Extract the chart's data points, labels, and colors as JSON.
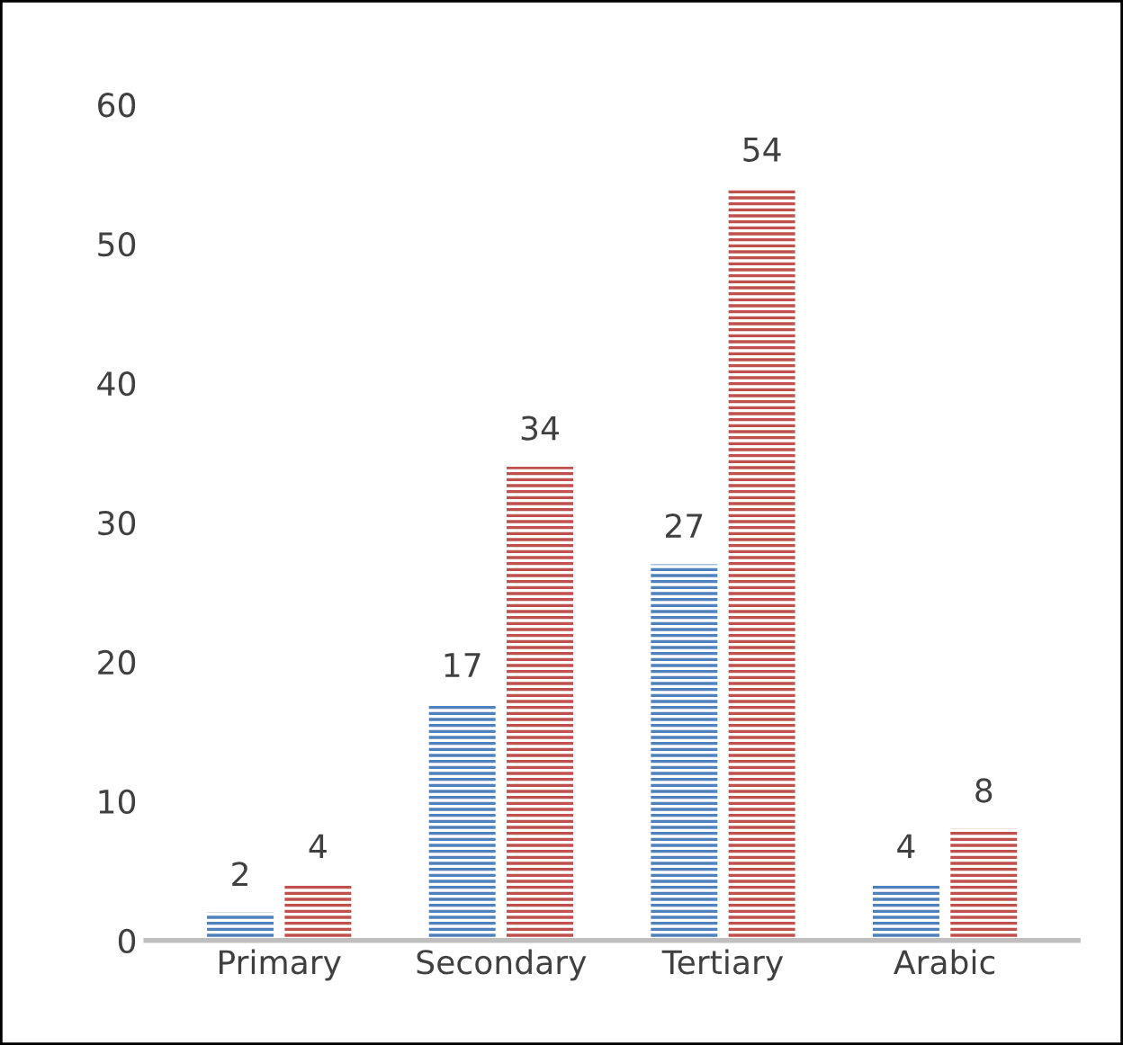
{
  "chart_data": {
    "type": "bar",
    "categories": [
      "Primary",
      "Secondary",
      "Tertiary",
      "Arabic"
    ],
    "series": [
      {
        "color": "#4f81bd",
        "values": [
          2,
          17,
          27,
          4
        ]
      },
      {
        "color": "#c0504d",
        "values": [
          4,
          34,
          54,
          8
        ]
      }
    ],
    "ylim": [
      0,
      60
    ],
    "yticks": [
      0,
      10,
      20,
      30,
      40,
      50,
      60
    ],
    "data_labels": true,
    "grid": false,
    "legend": false
  }
}
